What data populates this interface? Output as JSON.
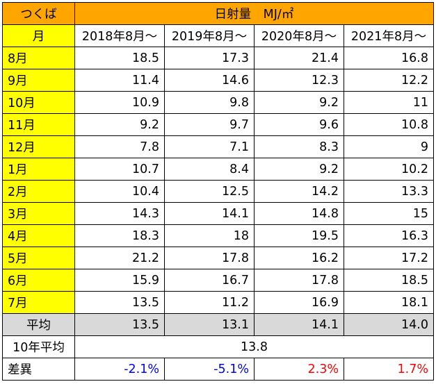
{
  "corner_label": "つくば",
  "title": "日射量　MJ/㎡",
  "month_header": "月",
  "year_headers": [
    "2018年8月～",
    "2019年8月～",
    "2020年8月～",
    "2021年8月～"
  ],
  "rows": [
    {
      "month": "8月",
      "values": [
        "18.5",
        "17.3",
        "21.4",
        "16.8"
      ]
    },
    {
      "month": "9月",
      "values": [
        "11.4",
        "14.6",
        "12.3",
        "12.2"
      ]
    },
    {
      "month": "10月",
      "values": [
        "10.9",
        "9.8",
        "9.2",
        "11"
      ]
    },
    {
      "month": "11月",
      "values": [
        "9.2",
        "9.7",
        "9.6",
        "10.8"
      ]
    },
    {
      "month": "12月",
      "values": [
        "7.8",
        "7.1",
        "8.3",
        "9"
      ]
    },
    {
      "month": "1月",
      "values": [
        "10.7",
        "8.4",
        "9.2",
        "10.2"
      ]
    },
    {
      "month": "2月",
      "values": [
        "10.4",
        "12.5",
        "14.2",
        "13.3"
      ]
    },
    {
      "month": "3月",
      "values": [
        "14.3",
        "14.1",
        "14.8",
        "15"
      ]
    },
    {
      "month": "4月",
      "values": [
        "18.3",
        "18",
        "19.5",
        "16.3"
      ]
    },
    {
      "month": "5月",
      "values": [
        "21.2",
        "17.8",
        "16.2",
        "17.2"
      ]
    },
    {
      "month": "6月",
      "values": [
        "15.9",
        "16.7",
        "17.8",
        "18.5"
      ]
    },
    {
      "month": "7月",
      "values": [
        "13.5",
        "11.2",
        "16.9",
        "18.1"
      ]
    }
  ],
  "average": {
    "label": "平均",
    "values": [
      "13.5",
      "13.1",
      "14.1",
      "14.0"
    ]
  },
  "ten_year": {
    "label": "10年平均",
    "value": "13.8"
  },
  "difference": {
    "label": "差異",
    "values": [
      "-2.1%",
      "-5.1%",
      "2.3%",
      "1.7%"
    ]
  },
  "colors": {
    "header_orange": "#ffa500",
    "month_yellow": "#ffff00",
    "average_gray": "#d9d9d9",
    "negative_blue": "#0000ff",
    "positive_red": "#ff0000"
  }
}
